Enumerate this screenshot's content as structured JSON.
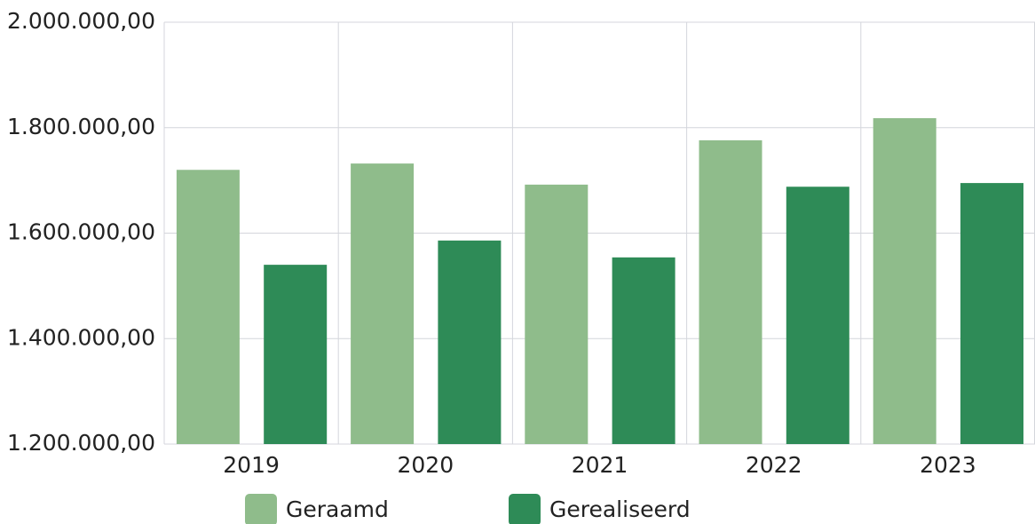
{
  "chart_data": {
    "type": "bar",
    "categories": [
      "2019",
      "2020",
      "2021",
      "2022",
      "2023"
    ],
    "series": [
      {
        "name": "Geraamd",
        "color": "#8fbc8b",
        "values": [
          1720000,
          1732000,
          1692000,
          1776000,
          1818000
        ]
      },
      {
        "name": "Gerealiseerd",
        "color": "#2e8b57",
        "values": [
          1540000,
          1586000,
          1554000,
          1688000,
          1695000
        ]
      }
    ],
    "ylim": [
      1200000,
      2000000
    ],
    "yticks": [
      {
        "value": 1200000,
        "label": "1.200.000,00"
      },
      {
        "value": 1400000,
        "label": "1.400.000,00"
      },
      {
        "value": 1600000,
        "label": "1.600.000,00"
      },
      {
        "value": 1800000,
        "label": "1.800.000,00"
      },
      {
        "value": 2000000,
        "label": "2.000.000,00"
      }
    ],
    "grid": true
  }
}
